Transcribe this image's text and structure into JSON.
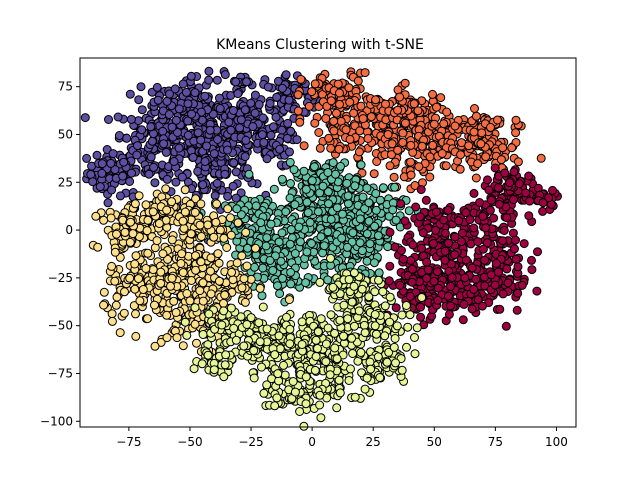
{
  "chart_data": {
    "type": "scatter",
    "title": "KMeans Clustering with t-SNE",
    "xlabel": "",
    "ylabel": "",
    "xlim": [
      -95,
      108
    ],
    "ylim": [
      -103,
      90
    ],
    "x_ticks": [
      -75,
      -50,
      -25,
      0,
      25,
      50,
      75,
      100
    ],
    "y_ticks": [
      -100,
      -75,
      -50,
      -25,
      0,
      25,
      50,
      75
    ],
    "x_tick_labels": [
      "−75",
      "−50",
      "−25",
      "0",
      "25",
      "50",
      "75",
      "100"
    ],
    "y_tick_labels": [
      "−100",
      "−75",
      "−50",
      "−25",
      "0",
      "25",
      "50",
      "75"
    ],
    "grid": false,
    "legend": "none",
    "marker": {
      "shape": "circle",
      "edgecolor": "#000000"
    },
    "series": [
      {
        "color": "#5e4fa2",
        "blobs": [
          [
            -82,
            30,
            5,
            6,
            70
          ],
          [
            -65,
            45,
            8,
            12,
            140
          ],
          [
            -45,
            55,
            10,
            12,
            220
          ],
          [
            -38,
            35,
            8,
            10,
            140
          ],
          [
            -25,
            55,
            8,
            8,
            100
          ],
          [
            -10,
            70,
            7,
            6,
            80
          ],
          [
            -18,
            45,
            5,
            6,
            40
          ],
          [
            -55,
            65,
            5,
            5,
            40
          ],
          [
            -30,
            78,
            3,
            2,
            8
          ]
        ]
      },
      {
        "color": "#f46d43",
        "blobs": [
          [
            10,
            70,
            7,
            6,
            90
          ],
          [
            25,
            55,
            10,
            8,
            140
          ],
          [
            40,
            60,
            8,
            7,
            100
          ],
          [
            55,
            48,
            10,
            6,
            100
          ],
          [
            70,
            40,
            8,
            6,
            70
          ],
          [
            72,
            55,
            6,
            3,
            30
          ],
          [
            40,
            35,
            6,
            6,
            40
          ],
          [
            10,
            50,
            5,
            5,
            30
          ]
        ]
      },
      {
        "color": "#66c2a5",
        "blobs": [
          [
            0,
            10,
            10,
            12,
            180
          ],
          [
            15,
            -5,
            9,
            10,
            150
          ],
          [
            -15,
            -10,
            9,
            9,
            120
          ],
          [
            25,
            10,
            7,
            8,
            80
          ],
          [
            -25,
            5,
            6,
            6,
            50
          ],
          [
            5,
            25,
            7,
            5,
            80
          ],
          [
            -12,
            -25,
            5,
            5,
            40
          ],
          [
            15,
            -25,
            5,
            5,
            40
          ]
        ]
      },
      {
        "color": "#9e0142",
        "blobs": [
          [
            50,
            0,
            8,
            10,
            90
          ],
          [
            60,
            -25,
            10,
            10,
            140
          ],
          [
            45,
            -25,
            7,
            8,
            80
          ],
          [
            75,
            -20,
            7,
            10,
            90
          ],
          [
            70,
            5,
            8,
            8,
            60
          ],
          [
            85,
            20,
            6,
            4,
            50
          ],
          [
            95,
            15,
            4,
            3,
            15
          ],
          [
            48,
            -40,
            6,
            5,
            40
          ],
          [
            80,
            25,
            5,
            4,
            30
          ]
        ]
      },
      {
        "color": "#fee08b",
        "blobs": [
          [
            -65,
            -30,
            10,
            10,
            160
          ],
          [
            -50,
            -15,
            9,
            9,
            120
          ],
          [
            -45,
            -45,
            8,
            8,
            100
          ],
          [
            -70,
            5,
            8,
            5,
            80
          ],
          [
            -35,
            -30,
            6,
            7,
            60
          ],
          [
            -55,
            10,
            7,
            5,
            60
          ],
          [
            -80,
            -5,
            5,
            5,
            30
          ],
          [
            -40,
            0,
            5,
            5,
            40
          ]
        ]
      },
      {
        "color": "#e6f598",
        "blobs": [
          [
            -15,
            -60,
            10,
            8,
            150
          ],
          [
            10,
            -65,
            12,
            10,
            180
          ],
          [
            25,
            -45,
            8,
            7,
            90
          ],
          [
            -5,
            -85,
            8,
            6,
            80
          ],
          [
            -35,
            -50,
            7,
            6,
            60
          ],
          [
            -40,
            -68,
            4,
            4,
            30
          ],
          [
            15,
            -30,
            6,
            5,
            50
          ],
          [
            30,
            -70,
            5,
            4,
            30
          ]
        ]
      }
    ]
  }
}
